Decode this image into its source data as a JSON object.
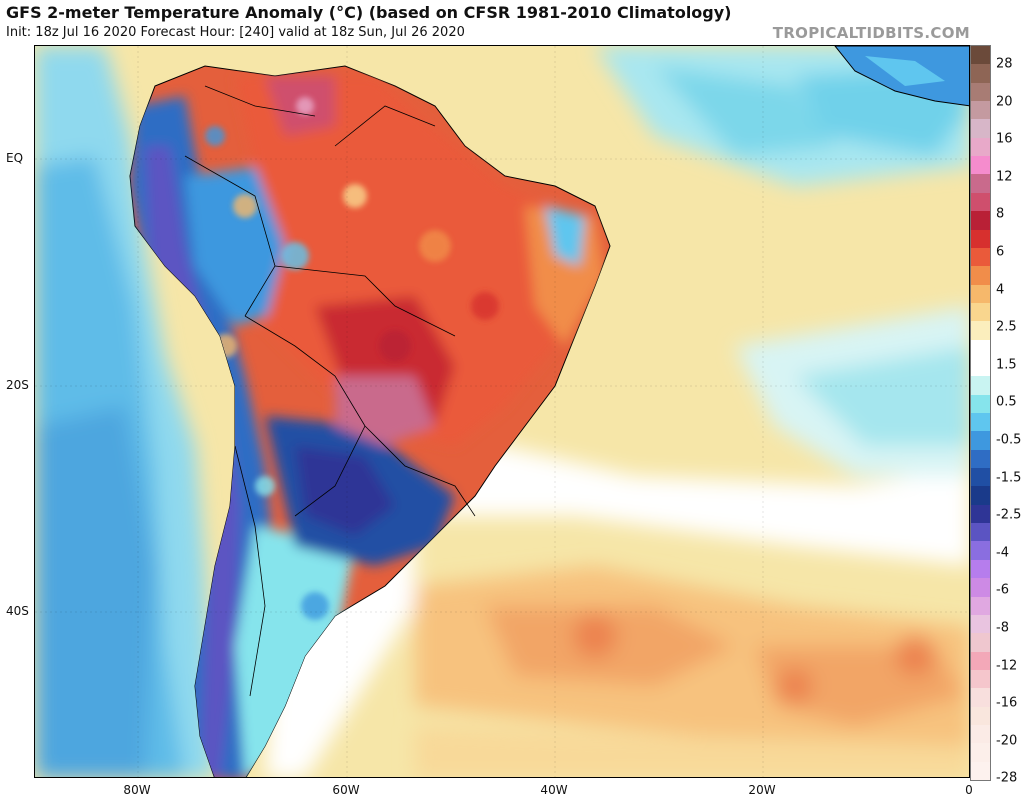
{
  "header": {
    "title": "GFS 2-meter Temperature Anomaly (°C) (based on CFSR 1981-2010 Climatology)",
    "subtitle": "Init: 18z Jul 16 2020   Forecast Hour: [240]   valid at 18z Sun, Jul 26 2020",
    "brand": "TROPICALTIDBITS.COM"
  },
  "map": {
    "region": "South America and South Atlantic",
    "lat_labels": [
      "EQ",
      "20S",
      "40S"
    ],
    "lon_labels": [
      "80W",
      "60W",
      "40W",
      "20W",
      "0"
    ],
    "ocean_color": "#f4e7a6",
    "land_base_color": "#e8703f"
  },
  "colorbar": {
    "labels": [
      "28",
      "20",
      "16",
      "12",
      "8",
      "6",
      "4",
      "2.5",
      "1.5",
      "0.5",
      "-0.5",
      "-1.5",
      "-2.5",
      "-4",
      "-6",
      "-8",
      "-12",
      "-16",
      "-20",
      "-28"
    ],
    "colors": [
      "#6b4a3a",
      "#8e6555",
      "#a87c74",
      "#c49aa0",
      "#d7b6c8",
      "#e8a9c9",
      "#f58ccd",
      "#c96a8c",
      "#cf4f6d",
      "#b92036",
      "#d7302e",
      "#ea5a3a",
      "#f18d4a",
      "#f6b86b",
      "#f9d68e",
      "#fbeebd",
      "#ffffff",
      "#ffffff",
      "#c9f4f2",
      "#86e4ec",
      "#5fc6ef",
      "#3e98df",
      "#2f6dc4",
      "#204fa4",
      "#1a3a8a",
      "#2f3596",
      "#5b54c2",
      "#8a6ee0",
      "#b67ded",
      "#cd8ae5",
      "#e0a8e1",
      "#e9c4e0",
      "#efc7cf",
      "#f3a8b8",
      "#f5c6cc",
      "#f8dfdd",
      "#f9e6dd",
      "#fbebe6",
      "#fcefea",
      "#fdf2ee"
    ]
  }
}
